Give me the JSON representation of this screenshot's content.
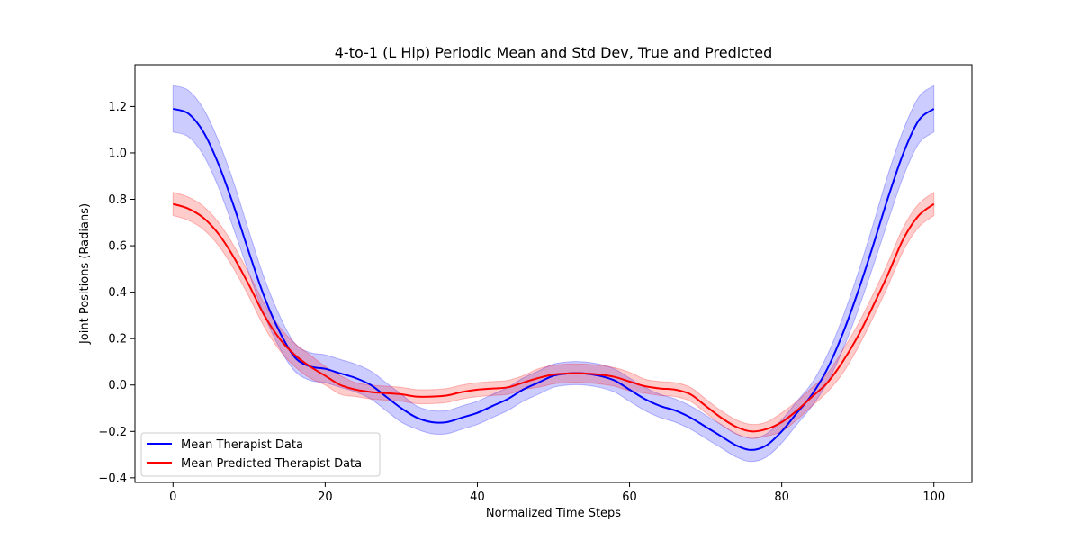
{
  "chart_data": {
    "type": "line",
    "title": "4-to-1 (L Hip) Periodic Mean and Std Dev, True and Predicted",
    "xlabel": "Normalized Time Steps",
    "ylabel": "Joint Positions (Radians)",
    "xlim": [
      -5,
      105
    ],
    "ylim": [
      -0.42,
      1.38
    ],
    "xticks": [
      0,
      20,
      40,
      60,
      80,
      100
    ],
    "yticks": [
      -0.4,
      -0.2,
      0.0,
      0.2,
      0.4,
      0.6,
      0.8,
      1.0,
      1.2
    ],
    "ytick_labels": [
      "−0.4",
      "−0.2",
      "0.0",
      "0.2",
      "0.4",
      "0.6",
      "0.8",
      "1.0",
      "1.2"
    ],
    "grid": false,
    "legend_position": "lower-left",
    "x": [
      0,
      2,
      4,
      6,
      8,
      10,
      12,
      14,
      16,
      18,
      20,
      22,
      24,
      26,
      28,
      30,
      32,
      34,
      36,
      38,
      40,
      42,
      44,
      46,
      48,
      50,
      52,
      54,
      56,
      58,
      60,
      62,
      64,
      66,
      68,
      70,
      72,
      74,
      76,
      78,
      80,
      82,
      84,
      86,
      88,
      90,
      92,
      94,
      96,
      98,
      100
    ],
    "series": [
      {
        "name": "Mean Therapist Data",
        "color": "#0000ff",
        "band_color": "#0000ff",
        "values": [
          1.19,
          1.17,
          1.09,
          0.95,
          0.77,
          0.57,
          0.38,
          0.23,
          0.12,
          0.08,
          0.07,
          0.05,
          0.03,
          0.0,
          -0.05,
          -0.1,
          -0.14,
          -0.16,
          -0.16,
          -0.14,
          -0.12,
          -0.09,
          -0.06,
          -0.02,
          0.01,
          0.04,
          0.05,
          0.05,
          0.04,
          0.02,
          -0.02,
          -0.06,
          -0.09,
          -0.11,
          -0.14,
          -0.18,
          -0.22,
          -0.26,
          -0.28,
          -0.26,
          -0.2,
          -0.12,
          -0.04,
          0.07,
          0.22,
          0.4,
          0.6,
          0.81,
          1.0,
          1.14,
          1.19
        ],
        "std": [
          0.1,
          0.1,
          0.1,
          0.1,
          0.1,
          0.09,
          0.08,
          0.07,
          0.06,
          0.06,
          0.06,
          0.06,
          0.06,
          0.06,
          0.06,
          0.06,
          0.05,
          0.05,
          0.05,
          0.05,
          0.05,
          0.05,
          0.05,
          0.05,
          0.05,
          0.05,
          0.05,
          0.05,
          0.05,
          0.05,
          0.05,
          0.05,
          0.05,
          0.05,
          0.05,
          0.05,
          0.05,
          0.05,
          0.05,
          0.05,
          0.05,
          0.05,
          0.05,
          0.06,
          0.07,
          0.08,
          0.09,
          0.1,
          0.1,
          0.1,
          0.1
        ]
      },
      {
        "name": "Mean Predicted Therapist Data",
        "color": "#ff0000",
        "band_color": "#ff0000",
        "values": [
          0.78,
          0.76,
          0.72,
          0.65,
          0.55,
          0.43,
          0.3,
          0.2,
          0.13,
          0.08,
          0.04,
          0.0,
          -0.02,
          -0.03,
          -0.035,
          -0.04,
          -0.05,
          -0.05,
          -0.045,
          -0.03,
          -0.02,
          -0.015,
          -0.01,
          0.01,
          0.03,
          0.045,
          0.05,
          0.05,
          0.045,
          0.035,
          0.015,
          -0.005,
          -0.015,
          -0.02,
          -0.04,
          -0.09,
          -0.14,
          -0.18,
          -0.2,
          -0.19,
          -0.16,
          -0.11,
          -0.05,
          0.01,
          0.1,
          0.21,
          0.34,
          0.48,
          0.63,
          0.73,
          0.78
        ],
        "std": [
          0.05,
          0.05,
          0.05,
          0.05,
          0.05,
          0.05,
          0.05,
          0.05,
          0.05,
          0.05,
          0.04,
          0.04,
          0.03,
          0.03,
          0.03,
          0.03,
          0.03,
          0.03,
          0.03,
          0.03,
          0.03,
          0.03,
          0.03,
          0.03,
          0.04,
          0.04,
          0.04,
          0.04,
          0.04,
          0.04,
          0.04,
          0.03,
          0.03,
          0.03,
          0.03,
          0.03,
          0.03,
          0.03,
          0.03,
          0.03,
          0.04,
          0.04,
          0.04,
          0.04,
          0.05,
          0.05,
          0.05,
          0.05,
          0.05,
          0.05,
          0.05
        ]
      }
    ]
  }
}
